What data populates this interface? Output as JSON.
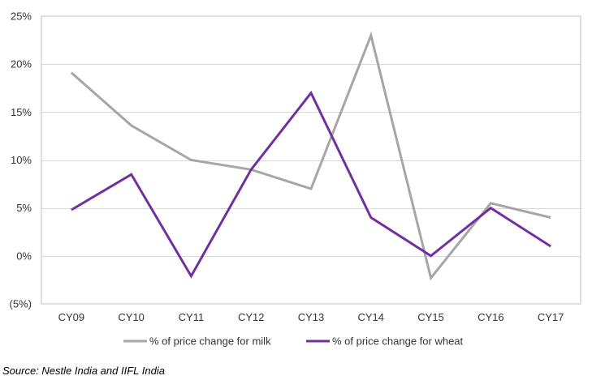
{
  "chart_data": {
    "type": "line",
    "categories": [
      "CY09",
      "CY10",
      "CY11",
      "CY12",
      "CY13",
      "CY14",
      "CY15",
      "CY16",
      "CY17"
    ],
    "ylim": [
      -5,
      25
    ],
    "y_ticks": [
      25,
      20,
      15,
      10,
      5,
      0,
      -5
    ],
    "y_tick_labels": [
      "25%",
      "20%",
      "15%",
      "10%",
      "5%",
      "0%",
      "(5%)"
    ],
    "negative_tick_color": "#c00000",
    "grid": true,
    "legend_position": "bottom",
    "series": [
      {
        "name": "% of price change for milk",
        "color": "#a6a6a6",
        "values": [
          19.1,
          13.6,
          10.0,
          9.0,
          7.0,
          23.0,
          -2.3,
          5.5,
          4.0
        ]
      },
      {
        "name": "% of price change for wheat",
        "color": "#7030a0",
        "values": [
          4.8,
          8.5,
          -2.1,
          9.0,
          17.0,
          4.0,
          0.0,
          5.0,
          1.0
        ]
      }
    ]
  },
  "source": "Source: Nestle India and IIFL India"
}
